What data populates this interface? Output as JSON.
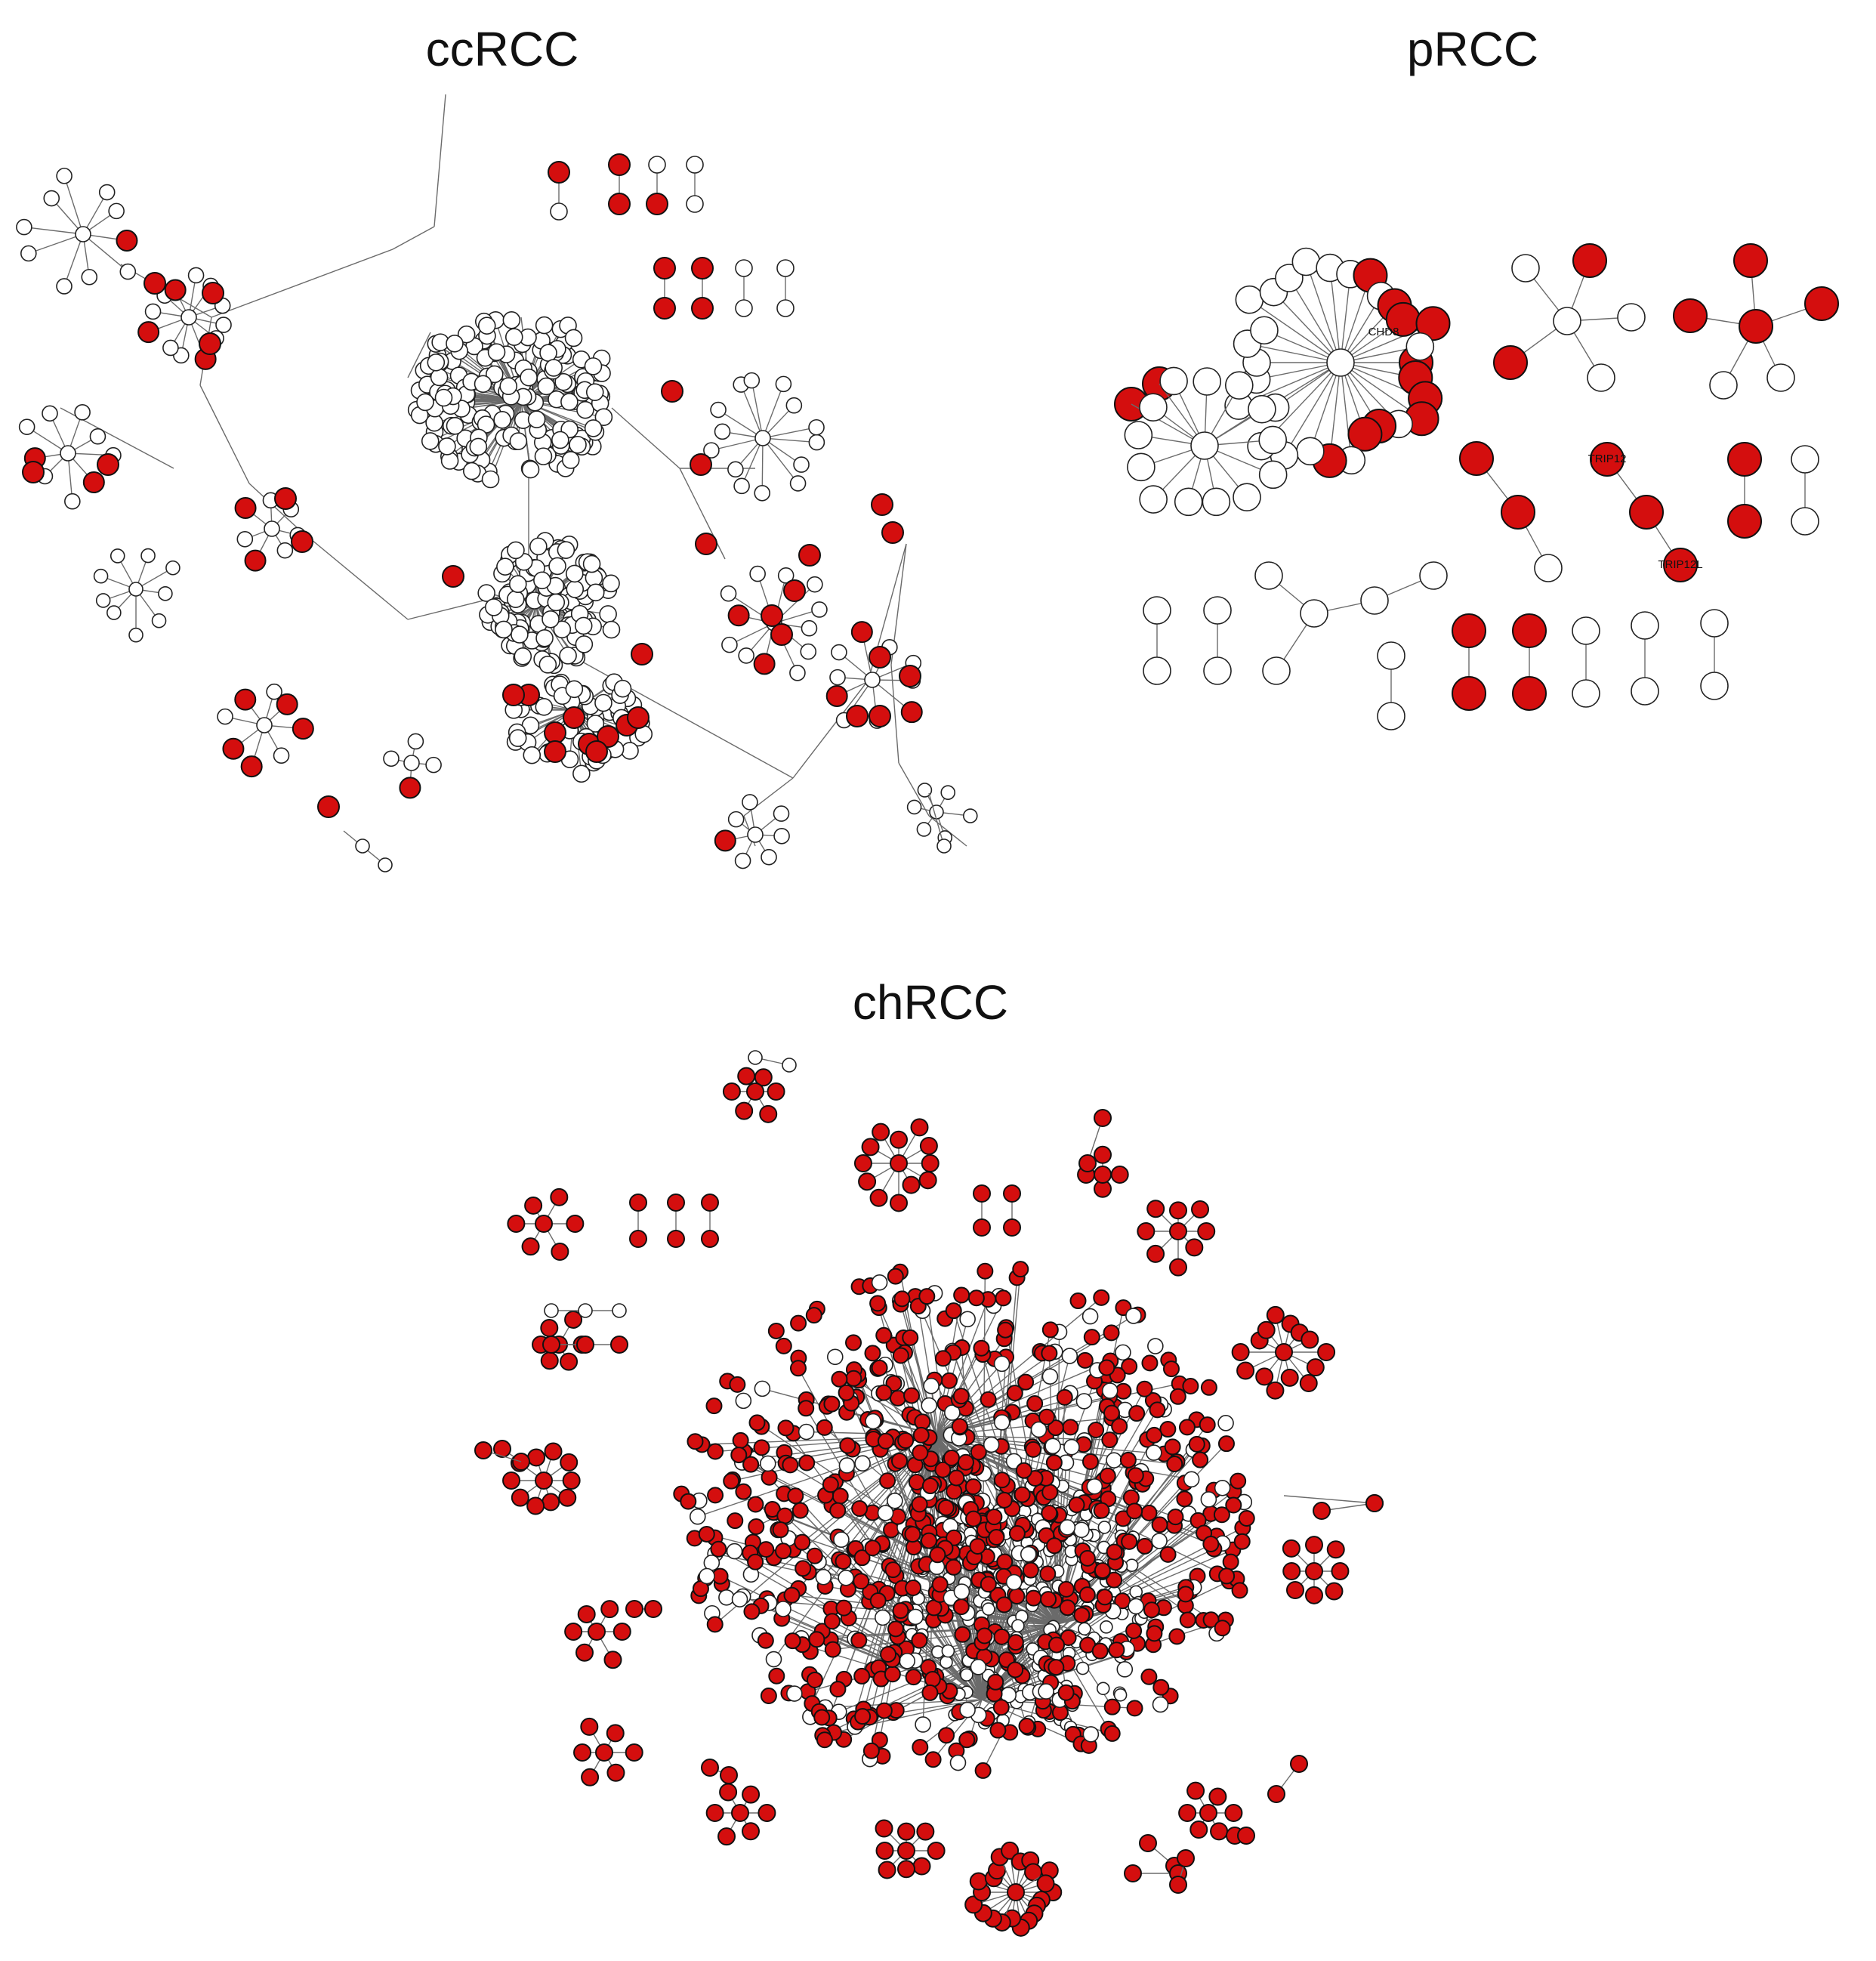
{
  "panels": [
    {
      "id": "ccRCC",
      "title": "ccRCC"
    },
    {
      "id": "pRCC",
      "title": "pRCC"
    },
    {
      "id": "chRCC",
      "title": "chRCC"
    }
  ],
  "colors": {
    "highlight_node": "#d40e0e",
    "normal_node": "#ffffff",
    "edge": "#6b6b6b",
    "text": "#111111"
  },
  "prcc_labels": {
    "l1": "TRIP12",
    "l2": "TRIP12L",
    "l3": "CHD8"
  }
}
